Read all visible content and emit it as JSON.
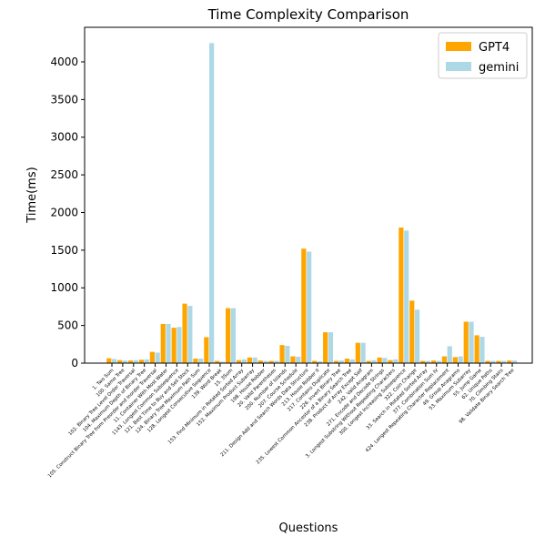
{
  "chart_data": {
    "type": "bar",
    "title": "Time Complexity Comparison",
    "x_label": "Questions",
    "y_label": "Time(ms)",
    "categories": [
      "1. Two Sum",
      "100. Same Tree",
      "102. Binary Tree Level Order Traversal",
      "104. Maximum Depth of Binary Tree",
      "105. Construct Binary Tree from Preorder and Inorder Traversal",
      "11. Container With Most Water",
      "1143. Longest Common Subsequence",
      "121. Best Time to Buy and Sell Stock",
      "124. Binary Tree Maximum Path Sum",
      "128. Longest Consecutive Sequence",
      "139. Word Break",
      "15. 3Sum",
      "153. Find Minimum in Rotated Sorted Array",
      "152. Maximum Product Subarray",
      "198. House Robber",
      "20. Valid Parentheses",
      "200. Number of Islands",
      "207. Course Schedule",
      "211. Design Add and Search Words Data Structure",
      "213. House Robber II",
      "217. Contains Duplicate",
      "226. Invert Binary Tree",
      "235. Lowest Common Ancestor of a Binary Search Tree",
      "238. Product of Array Except Self",
      "242. Valid Anagram",
      "271. Encode and Decode Strings",
      "3. Longest Substring Without Repeating Characters",
      "300. Longest Increasing Subsequence",
      "322. Coin Change",
      "33. Search in Rotated Sorted Array",
      "377. Combination Sum IV",
      "424. Longest Repeating Character Replacement",
      "49. Group Anagrams",
      "53. Maximum Subarray",
      "55. Jump Game",
      "62. Unique Paths",
      "70. Climbing Stairs",
      "98. Validate Binary Search Tree"
    ],
    "series": [
      {
        "name": "GPT4",
        "color": "#ffa500",
        "values": [
          65,
          40,
          35,
          45,
          150,
          520,
          470,
          790,
          60,
          345,
          30,
          730,
          40,
          75,
          35,
          30,
          240,
          90,
          1520,
          30,
          410,
          30,
          60,
          270,
          30,
          75,
          40,
          1800,
          830,
          30,
          35,
          90,
          80,
          550,
          370,
          30,
          30,
          35
        ]
      },
      {
        "name": "gemini",
        "color": "#add8e6",
        "values": [
          55,
          35,
          40,
          50,
          140,
          520,
          480,
          760,
          60,
          4250,
          20,
          730,
          50,
          75,
          30,
          30,
          230,
          85,
          1480,
          25,
          410,
          35,
          50,
          270,
          40,
          70,
          50,
          1760,
          710,
          30,
          30,
          225,
          90,
          550,
          350,
          30,
          30,
          35
        ]
      }
    ],
    "ylim": [
      0,
      4459
    ],
    "yticks": [
      0,
      500,
      1000,
      1500,
      2000,
      2500,
      3000,
      3500,
      4000
    ],
    "legend": "upper right"
  }
}
